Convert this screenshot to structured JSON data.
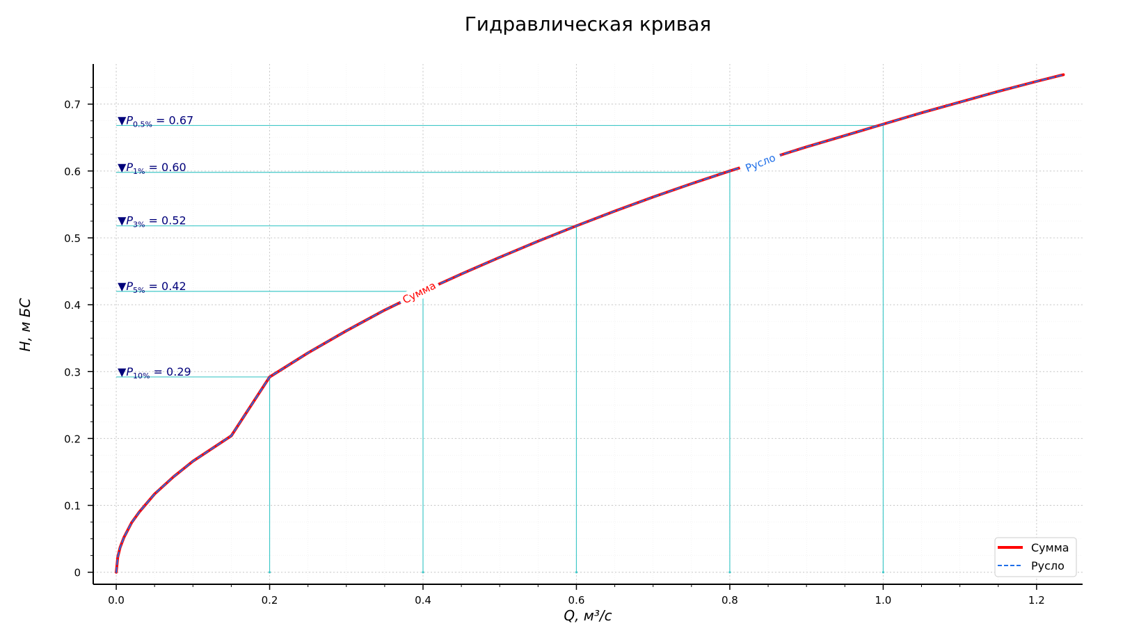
{
  "chart_data": {
    "type": "line",
    "title": "Гидравлическая кривая",
    "xlabel": "Q, м³/с",
    "ylabel": "H, м БС",
    "xlim": [
      -0.03,
      1.26
    ],
    "ylim": [
      -0.018,
      0.76
    ],
    "x_ticks": [
      0.0,
      0.2,
      0.4,
      0.6,
      0.8,
      1.0,
      1.2
    ],
    "x_tick_labels": [
      "0.0",
      "0.2",
      "0.4",
      "0.6",
      "0.8",
      "1.0",
      "1.2"
    ],
    "y_ticks": [
      0,
      0.1,
      0.2,
      0.3,
      0.4,
      0.5,
      0.6,
      0.7
    ],
    "y_tick_labels": [
      "0",
      "0.1",
      "0.2",
      "0.3",
      "0.4",
      "0.5",
      "0.6",
      "0.7"
    ],
    "grid": true,
    "legend_position": "bottom-right",
    "series": [
      {
        "name": "Сумма",
        "color": "#ff0000",
        "style": "solid",
        "inline_label": "Сумма",
        "x": [
          0,
          0.002,
          0.005,
          0.01,
          0.02,
          0.03,
          0.05,
          0.075,
          0.1,
          0.15,
          0.2,
          0.25,
          0.3,
          0.35,
          0.4,
          0.45,
          0.5,
          0.55,
          0.6,
          0.65,
          0.7,
          0.75,
          0.8,
          0.85,
          0.9,
          0.95,
          1.0,
          1.05,
          1.1,
          1.15,
          1.2,
          1.235
        ],
        "y": [
          0,
          0.023,
          0.037,
          0.052,
          0.074,
          0.09,
          0.117,
          0.143,
          0.166,
          0.204,
          0.292,
          0.328,
          0.361,
          0.392,
          0.42,
          0.446,
          0.471,
          0.495,
          0.518,
          0.54,
          0.561,
          0.581,
          0.6,
          0.618,
          0.636,
          0.653,
          0.67,
          0.687,
          0.703,
          0.719,
          0.734,
          0.744
        ]
      },
      {
        "name": "Русло",
        "color": "#1f6fe8",
        "style": "dashed",
        "inline_label": "Русло",
        "x": [
          0,
          0.002,
          0.005,
          0.01,
          0.02,
          0.03,
          0.05,
          0.075,
          0.1,
          0.15,
          0.2,
          0.25,
          0.3,
          0.35,
          0.4,
          0.45,
          0.5,
          0.55,
          0.6,
          0.65,
          0.7,
          0.75,
          0.8,
          0.85,
          0.9,
          0.95,
          1.0,
          1.05,
          1.1,
          1.15,
          1.2,
          1.235
        ],
        "y": [
          0,
          0.023,
          0.037,
          0.052,
          0.074,
          0.09,
          0.117,
          0.143,
          0.166,
          0.204,
          0.292,
          0.328,
          0.361,
          0.392,
          0.42,
          0.446,
          0.471,
          0.495,
          0.518,
          0.54,
          0.561,
          0.581,
          0.6,
          0.618,
          0.636,
          0.653,
          0.67,
          0.687,
          0.703,
          0.719,
          0.734,
          0.744
        ]
      }
    ],
    "reference_lines_color": "#40c8c8",
    "annotations": [
      {
        "prefix": "▼P",
        "subscript": "0.5%",
        "suffix": " = 0.67",
        "q": 1.0,
        "h": 0.668
      },
      {
        "prefix": "▼P",
        "subscript": "1%",
        "suffix": " = 0.60",
        "q": 0.8,
        "h": 0.598
      },
      {
        "prefix": "▼P",
        "subscript": "3%",
        "suffix": " = 0.52",
        "q": 0.6,
        "h": 0.518
      },
      {
        "prefix": "▼P",
        "subscript": "5%",
        "suffix": " = 0.42",
        "q": 0.4,
        "h": 0.42
      },
      {
        "prefix": "▼P",
        "subscript": "10%",
        "suffix": " = 0.29",
        "q": 0.2,
        "h": 0.292
      }
    ]
  }
}
